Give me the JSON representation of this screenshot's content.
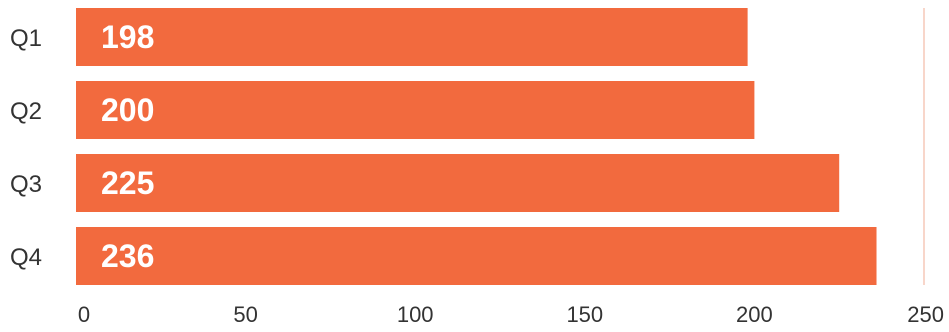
{
  "chart_data": {
    "type": "bar",
    "orientation": "horizontal",
    "categories": [
      "Q1",
      "Q2",
      "Q3",
      "Q4"
    ],
    "values": [
      198,
      200,
      225,
      236
    ],
    "xlim": [
      0,
      250
    ],
    "x_ticks": [
      0,
      50,
      100,
      150,
      200,
      250
    ],
    "x_tick_labels": [
      "0",
      "50",
      "100",
      "150",
      "200",
      "250"
    ],
    "data_labels": [
      "198",
      "200",
      "225",
      "236"
    ],
    "grid": false,
    "legend": "none",
    "colors": {
      "bar": "#f26a3e",
      "reference_line": "#f6c9b8",
      "data_label": "#ffffff",
      "text": "#333333"
    }
  }
}
